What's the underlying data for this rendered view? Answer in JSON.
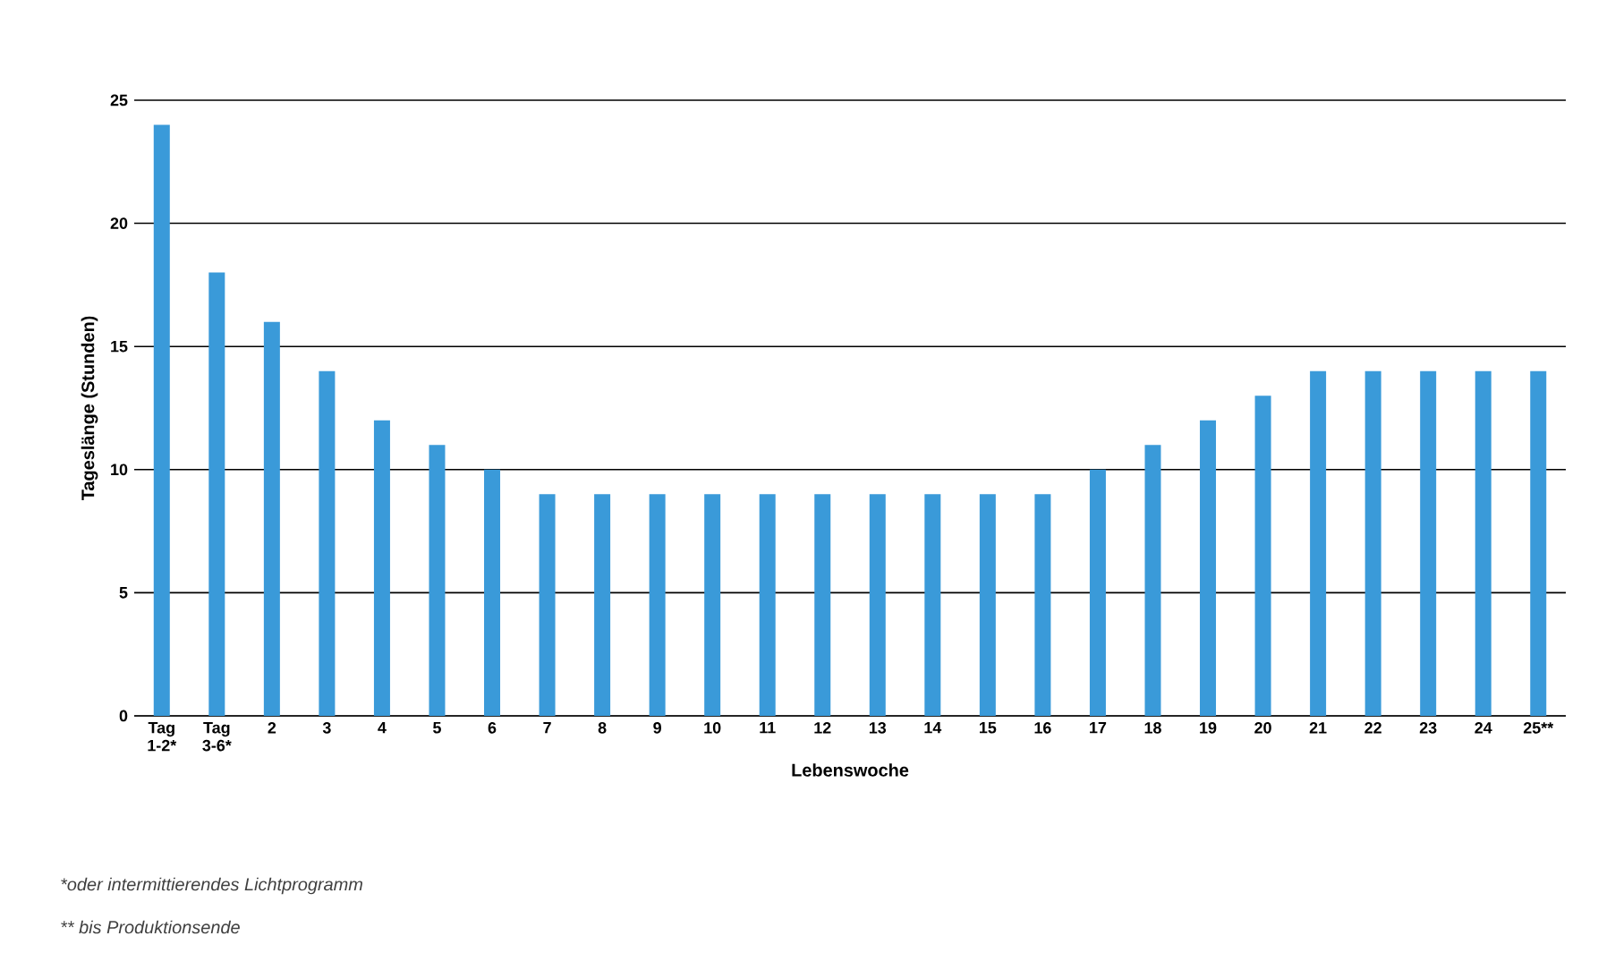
{
  "chart_data": {
    "type": "bar",
    "categories": [
      "Tag 1-2*",
      "Tag 3-6*",
      "2",
      "3",
      "4",
      "5",
      "6",
      "7",
      "8",
      "9",
      "10",
      "11",
      "12",
      "13",
      "14",
      "15",
      "16",
      "17",
      "18",
      "19",
      "20",
      "21",
      "22",
      "23",
      "24",
      "25**"
    ],
    "values": [
      24,
      18,
      16,
      14,
      12,
      11,
      10,
      9,
      9,
      9,
      9,
      9,
      9,
      9,
      9,
      9,
      9,
      10,
      11,
      12,
      13,
      14,
      14,
      14,
      14,
      14
    ],
    "color": "#3a9ad9",
    "xlabel": "Lebenswoche",
    "ylabel": "Tageslänge (Stunden)",
    "ylim": [
      0,
      25
    ],
    "yticks": [
      0,
      5,
      10,
      15,
      20,
      25
    ],
    "grid": "y",
    "annotations": [
      "*oder intermittierendes Lichtprogramm",
      "** bis Produktionsende"
    ]
  }
}
